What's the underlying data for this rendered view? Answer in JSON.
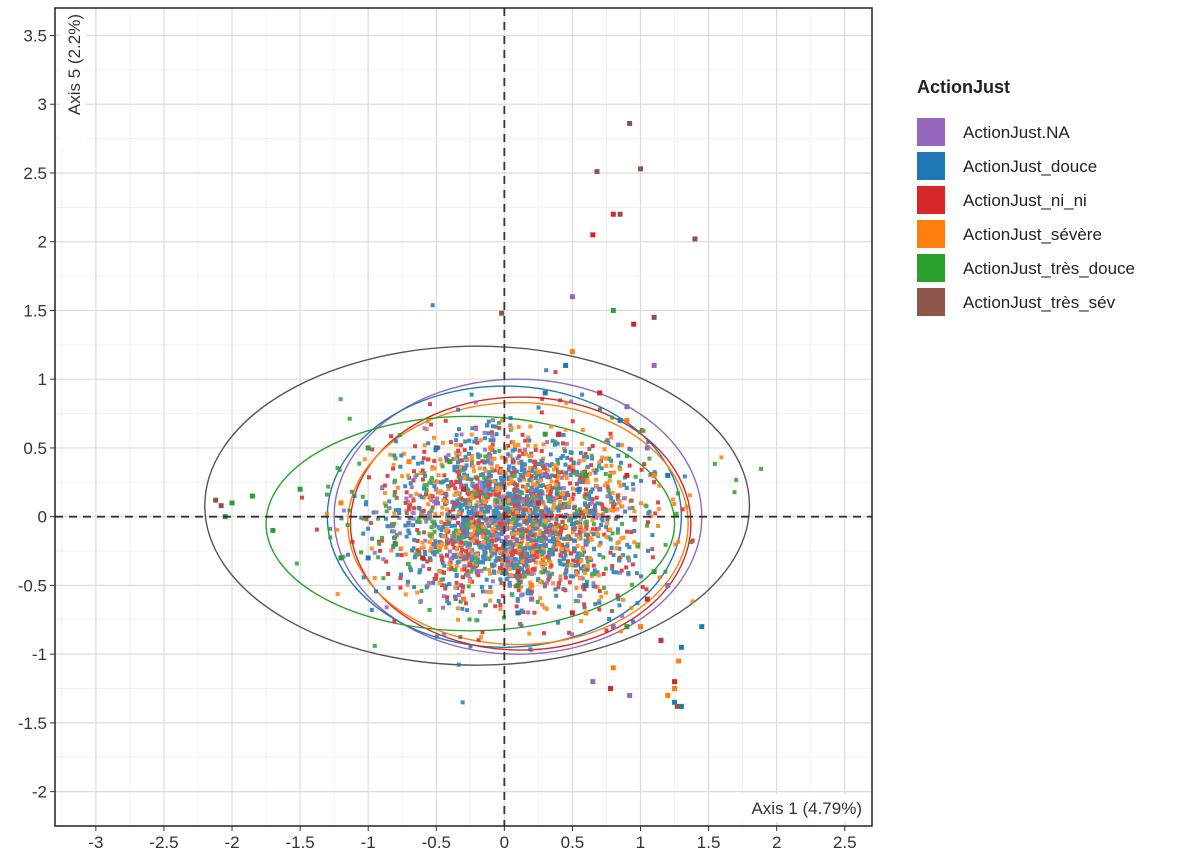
{
  "chart_data": {
    "type": "scatter",
    "xlabel": "Axis 1 (4.79%)",
    "ylabel": "Axis 5 (2.2%)",
    "xlim": [
      -3.3,
      2.7
    ],
    "ylim": [
      -2.25,
      3.7
    ],
    "x_ticks": [
      "-3",
      "-2.5",
      "-2",
      "-1.5",
      "-1",
      "-0.5",
      "0",
      "0.5",
      "1",
      "1.5",
      "2",
      "2.5"
    ],
    "y_ticks": [
      "-2",
      "-1.5",
      "-1",
      "-0.5",
      "0",
      "0.5",
      "1",
      "1.5",
      "2",
      "2.5",
      "3",
      "3.5"
    ],
    "grid": true,
    "reference_lines": {
      "x": 0,
      "y": 0,
      "style": "dashed"
    },
    "legend": {
      "title": "ActionJust",
      "placement": "right",
      "entries": [
        {
          "label": "ActionJust.NA",
          "color": "#9467bd"
        },
        {
          "label": "ActionJust_douce",
          "color": "#1f77b4"
        },
        {
          "label": "ActionJust_ni_ni",
          "color": "#d62728"
        },
        {
          "label": "ActionJust_sévère",
          "color": "#ff7f0e"
        },
        {
          "label": "ActionJust_très_douce",
          "color": "#2ca02c"
        },
        {
          "label": "ActionJust_très_sév",
          "color": "#8c564b"
        }
      ]
    },
    "series": [
      {
        "name": "ActionJust.NA",
        "color": "#9467bd",
        "center": [
          0.1,
          0.0
        ],
        "radii": [
          1.35,
          1.0
        ],
        "x": [
          0.65,
          0.92,
          0.5,
          1.1,
          0.9,
          1.05,
          0.3,
          -0.2,
          0.2,
          0.6,
          0.4,
          -0.5,
          0.8,
          0.7,
          1.2
        ],
        "y": [
          -1.2,
          -1.3,
          1.6,
          1.1,
          0.8,
          0.5,
          0.3,
          -0.4,
          -0.6,
          -0.2,
          0.6,
          0.1,
          -0.8,
          0.2,
          -0.5
        ]
      },
      {
        "name": "ActionJust_douce",
        "color": "#1f77b4",
        "center": [
          0.0,
          0.0
        ],
        "radii": [
          1.3,
          0.95
        ],
        "x": [
          1.3,
          1.45,
          1.3,
          -0.5,
          0.3,
          0.1,
          0.6,
          0.85,
          1.2,
          -1.0,
          -0.3,
          0.45,
          1.25,
          0.55,
          0.0
        ],
        "y": [
          -1.38,
          -0.8,
          -0.95,
          0.5,
          0.9,
          -0.7,
          -0.5,
          0.7,
          0.3,
          -0.3,
          0.2,
          1.1,
          -1.35,
          0.2,
          -0.2
        ]
      },
      {
        "name": "ActionJust_ni_ni",
        "color": "#d62728",
        "center": [
          0.12,
          -0.05
        ],
        "radii": [
          1.25,
          0.92
        ],
        "x": [
          0.8,
          0.95,
          0.65,
          0.78,
          1.15,
          0.4,
          0.1,
          -0.3,
          0.7,
          1.05,
          0.25,
          -0.6,
          0.5,
          0.9,
          1.25
        ],
        "y": [
          2.2,
          1.4,
          2.05,
          -1.25,
          -0.9,
          0.6,
          -0.4,
          0.2,
          0.9,
          -0.6,
          0.1,
          -0.3,
          -0.7,
          0.3,
          -1.2
        ]
      },
      {
        "name": "ActionJust_sévère",
        "color": "#ff7f0e",
        "center": [
          0.1,
          -0.05
        ],
        "radii": [
          1.25,
          0.88
        ],
        "x": [
          0.8,
          1.25,
          1.0,
          0.5,
          -1.2,
          -0.1,
          0.6,
          1.1,
          0.2,
          -0.7,
          0.9,
          0.4,
          1.28,
          1.2,
          -0.3
        ],
        "y": [
          -1.1,
          -1.25,
          -0.8,
          1.2,
          0.1,
          0.5,
          -0.7,
          0.3,
          -0.5,
          0.4,
          0.7,
          -0.2,
          -1.05,
          -1.3,
          -0.6
        ]
      },
      {
        "name": "ActionJust_très_douce",
        "color": "#2ca02c",
        "center": [
          -0.25,
          -0.05
        ],
        "radii": [
          1.5,
          0.78
        ],
        "x": [
          -2.0,
          -1.85,
          -2.05,
          -1.5,
          -1.7,
          0.9,
          0.3,
          -0.8,
          -0.4,
          0.6,
          -1.2,
          0.1,
          0.8,
          -1.0,
          1.1
        ],
        "y": [
          0.1,
          0.15,
          0.0,
          0.2,
          -0.1,
          -0.8,
          0.6,
          -0.2,
          0.4,
          0.3,
          -0.3,
          -0.5,
          1.5,
          0.5,
          -0.4
        ]
      },
      {
        "name": "ActionJust_très_sév",
        "color": "#8c564b",
        "center": [
          -0.2,
          0.08
        ],
        "radii": [
          2.0,
          1.16
        ],
        "x": [
          0.92,
          1.0,
          0.68,
          1.4,
          -0.02,
          -2.12,
          -2.08,
          1.27,
          1.1,
          0.85
        ],
        "y": [
          2.86,
          2.53,
          2.51,
          2.02,
          1.48,
          0.12,
          0.08,
          -1.38,
          1.45,
          2.2
        ]
      }
    ]
  }
}
